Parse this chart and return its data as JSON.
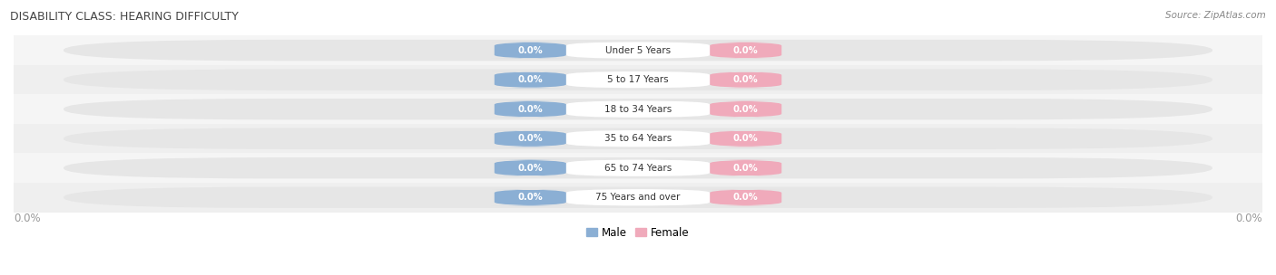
{
  "title": "DISABILITY CLASS: HEARING DIFFICULTY",
  "source": "Source: ZipAtlas.com",
  "categories": [
    "Under 5 Years",
    "5 to 17 Years",
    "18 to 34 Years",
    "35 to 64 Years",
    "65 to 74 Years",
    "75 Years and over"
  ],
  "male_values": [
    0.0,
    0.0,
    0.0,
    0.0,
    0.0,
    0.0
  ],
  "female_values": [
    0.0,
    0.0,
    0.0,
    0.0,
    0.0,
    0.0
  ],
  "male_color": "#8BAFD4",
  "female_color": "#F0AABB",
  "bar_bg_color_light": "#EBEBEB",
  "bar_bg_color_dark": "#DCDCDC",
  "row_bg_colors": [
    "#F5F5F5",
    "#EFEFEF"
  ],
  "label_color": "#333333",
  "title_color": "#444444",
  "source_color": "#888888",
  "value_label_color": "#FFFFFF",
  "bottom_label_color": "#999999",
  "figsize": [
    14.06,
    3.04
  ],
  "dpi": 100
}
